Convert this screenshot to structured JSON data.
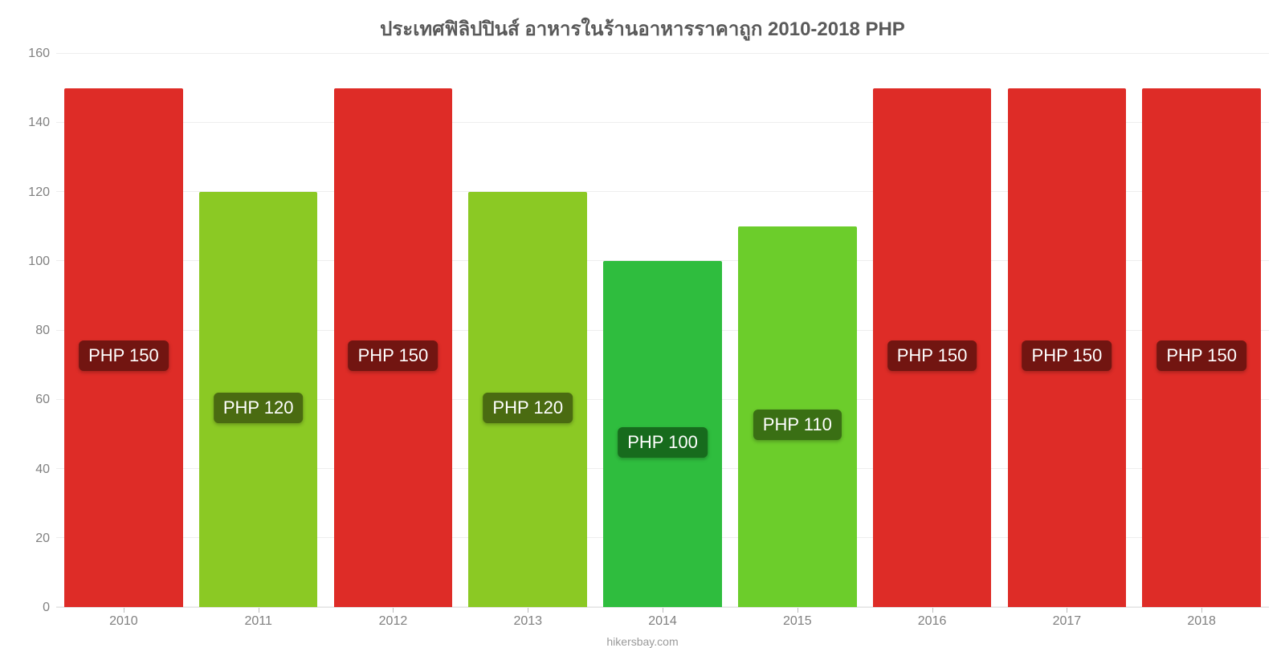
{
  "chart": {
    "type": "bar",
    "title": "ประเทศฟิลิปปินส์ อาหารในร้านอาหารราคาถูก 2010-2018 PHP",
    "title_fontsize": 24,
    "title_color": "#5a5a5a",
    "categories": [
      "2010",
      "2011",
      "2012",
      "2013",
      "2014",
      "2015",
      "2016",
      "2017",
      "2018"
    ],
    "values": [
      150,
      120,
      150,
      120,
      100,
      110,
      150,
      150,
      150
    ],
    "value_labels": [
      "PHP 150",
      "PHP 120",
      "PHP 150",
      "PHP 120",
      "PHP 100",
      "PHP 110",
      "PHP 150",
      "PHP 150",
      "PHP 150"
    ],
    "bar_colors": [
      "#de2c27",
      "#8bc924",
      "#de2c27",
      "#8bc924",
      "#2fbd3e",
      "#6ccd2b",
      "#de2c27",
      "#de2c27",
      "#de2c27"
    ],
    "badge_bg_colors": [
      "#721511",
      "#4a6b11",
      "#721511",
      "#4a6b11",
      "#176b1d",
      "#3a6f14",
      "#721511",
      "#721511",
      "#721511"
    ],
    "badge_text_color": "#ffffff",
    "badge_fontsize": 22,
    "ylim": [
      0,
      160
    ],
    "ytick_step": 20,
    "yticks": [
      0,
      20,
      40,
      60,
      80,
      100,
      120,
      140,
      160
    ],
    "label_fontsize": 16,
    "axis_text_color": "#808080",
    "background_color": "#ffffff",
    "grid_color": "#eeeeee",
    "bar_width": 0.88,
    "attribution": "hikersbay.com",
    "attribution_color": "#9a9a9a",
    "attribution_fontsize": 14,
    "badge_y_shift": 10
  }
}
